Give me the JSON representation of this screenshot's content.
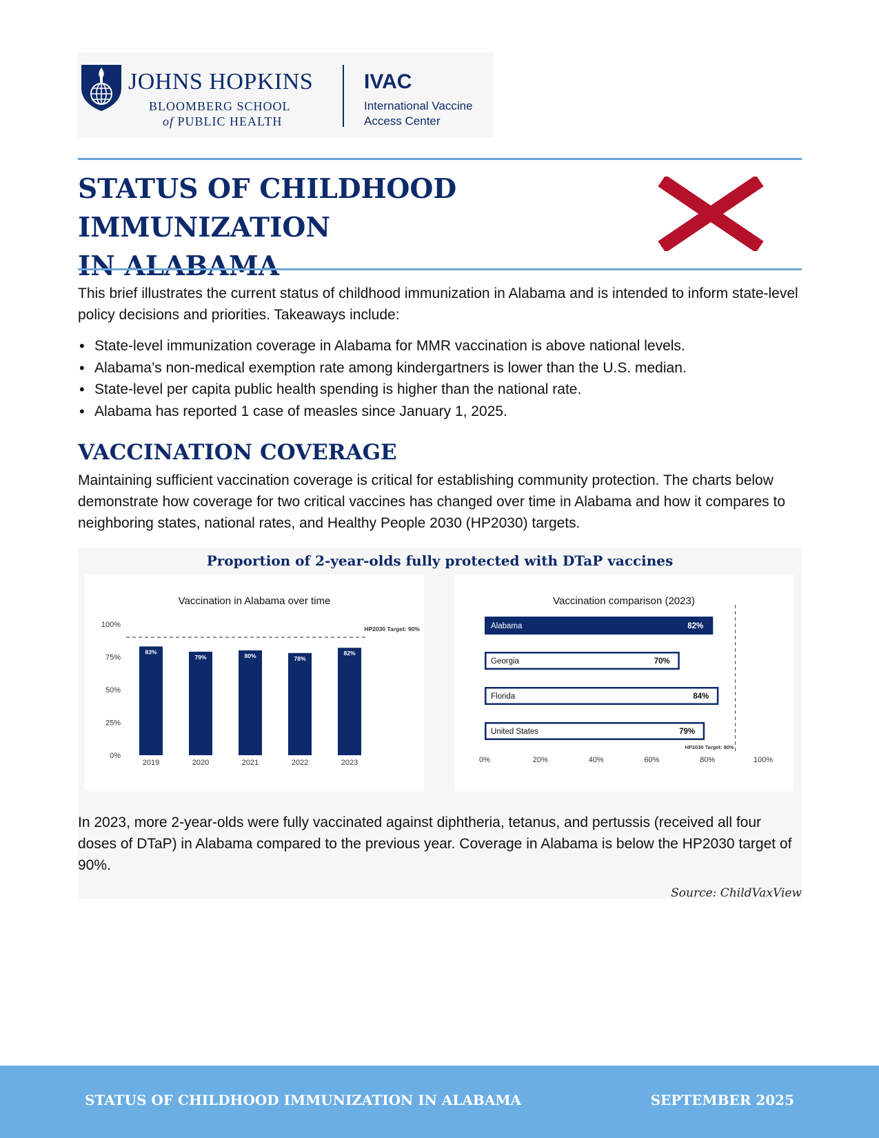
{
  "logo": {
    "org_name": "JOHNS HOPKINS",
    "school_line1": "BLOOMBERG SCHOOL",
    "school_line2_of": "of",
    "school_line2_rest": " PUBLIC HEALTH",
    "center_acronym": "IVAC",
    "center_line1": "International Vaccine",
    "center_line2": "Access Center",
    "shield_icon": "shield-globe-torch-icon"
  },
  "title": {
    "line1": "STATUS OF CHILDHOOD IMMUNIZATION",
    "line2": "IN ALABAMA",
    "flag_icon": "alabama-flag-saltire-icon",
    "flag_color": "#b5112b"
  },
  "intro": {
    "text": "This brief illustrates the current status of childhood immunization in Alabama and is intended to inform state-level policy decisions and priorities. Takeaways include:",
    "takeaways": [
      "State-level immunization coverage in Alabama for MMR vaccination is above national levels.",
      "Alabama’s non-medical exemption rate among kindergartners is lower than the U.S. median.",
      "State-level per capita public health spending is higher than the national rate.",
      "Alabama has reported 1 case of measles since January 1, 2025."
    ]
  },
  "section": {
    "heading": "VACCINATION COVERAGE",
    "description": "Maintaining sufficient vaccination coverage is critical for establishing community protection. The charts below demonstrate how coverage for two critical vaccines has changed over time in Alabama and how it compares to neighboring states, national rates, and Healthy People 2030 (HP2030) targets."
  },
  "chart_panel": {
    "title": "Proportion of 2-year-olds fully protected with DTaP vaccines",
    "summary": "In 2023, more 2-year-olds were fully vaccinated against diphtheria, tetanus, and pertussis (received all four doses of DTaP) in Alabama compared to the previous year. Coverage in Alabama is below the HP2030 target of 90%.",
    "source": "Source: ChildVaxView"
  },
  "chart_data": [
    {
      "type": "bar",
      "title": "Vaccination in Alabama over time",
      "categories": [
        "2019",
        "2020",
        "2021",
        "2022",
        "2023"
      ],
      "values": [
        83,
        79,
        80,
        78,
        82
      ],
      "data_labels": [
        "83%",
        "79%",
        "80%",
        "78%",
        "82%"
      ],
      "ylim": [
        0,
        100
      ],
      "y_ticks": [
        "0%",
        "25%",
        "50%",
        "75%",
        "100%"
      ],
      "target": 90,
      "target_label": "HP2030 Target: 90%",
      "bar_color": "#0d2a6b",
      "grid": false
    },
    {
      "type": "bar",
      "orientation": "horizontal",
      "title": "Vaccination comparison (2023)",
      "categories": [
        "Alabama",
        "Georgia",
        "Florida",
        "United States"
      ],
      "values": [
        82,
        70,
        84,
        79
      ],
      "data_labels": [
        "82%",
        "70%",
        "84%",
        "79%"
      ],
      "highlight": "Alabama",
      "xlim": [
        0,
        100
      ],
      "x_ticks": [
        "0%",
        "20%",
        "40%",
        "60%",
        "80%",
        "100%"
      ],
      "target": 90,
      "target_label": "HP2030 Target: 90%",
      "bar_color": "#0d2a6b",
      "grid": false
    }
  ],
  "footer": {
    "title": "STATUS OF CHILDHOOD IMMUNIZATION IN ALABAMA",
    "date": "SEPTEMBER 2025",
    "background": "#6aaee4"
  }
}
